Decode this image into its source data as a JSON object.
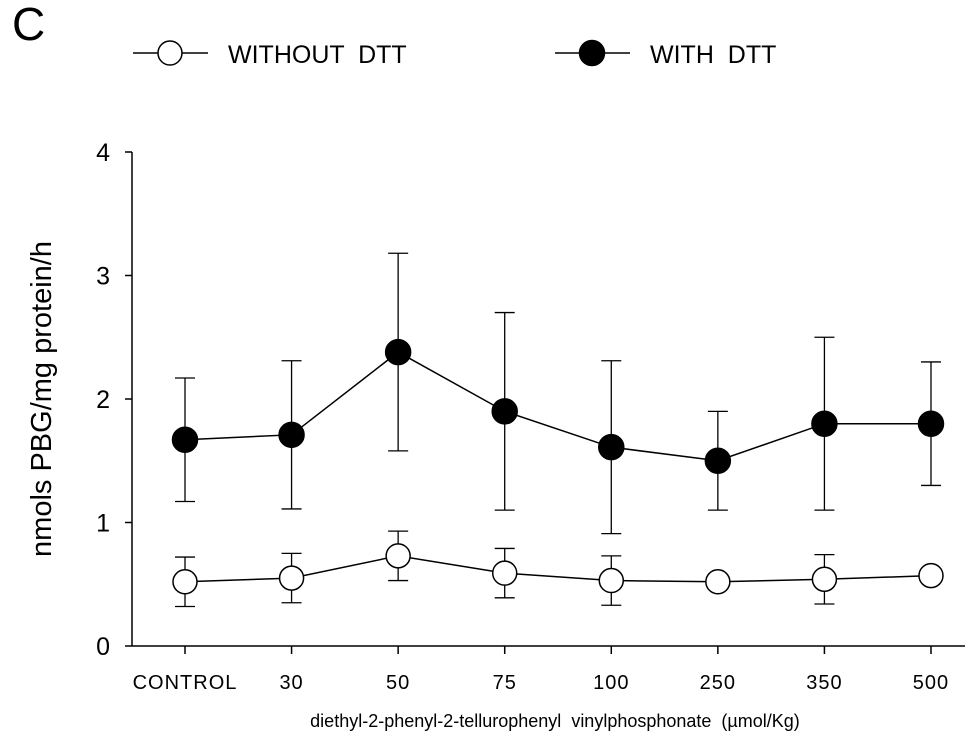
{
  "panel_label": "C",
  "chart_data": {
    "type": "line",
    "title": "",
    "xlabel": "diethyl-2-phenyl-2-tellurophenyl  vinylphosphonate  (µmol/Kg)",
    "ylabel": "nmols PBG/mg protein/h",
    "categories": [
      "CONTROL",
      "30",
      "50",
      "75",
      "100",
      "250",
      "350",
      "500"
    ],
    "ylim": [
      0,
      4
    ],
    "yticks": [
      "0",
      "1",
      "2",
      "3",
      "4"
    ],
    "grid": false,
    "legend_position": "top",
    "series": [
      {
        "name": "WITHOUT  DTT",
        "marker": "open-circle",
        "color": "#000000",
        "values": [
          0.52,
          0.55,
          0.73,
          0.59,
          0.53,
          0.52,
          0.54,
          0.57
        ],
        "error": [
          0.2,
          0.2,
          0.2,
          0.2,
          0.2,
          0.0,
          0.2,
          0.0
        ]
      },
      {
        "name": "WITH  DTT",
        "marker": "filled-circle",
        "color": "#000000",
        "values": [
          1.67,
          1.71,
          2.38,
          1.9,
          1.61,
          1.5,
          1.8,
          1.8
        ],
        "error": [
          0.5,
          0.6,
          0.8,
          0.8,
          0.7,
          0.4,
          0.7,
          0.5
        ]
      }
    ]
  }
}
